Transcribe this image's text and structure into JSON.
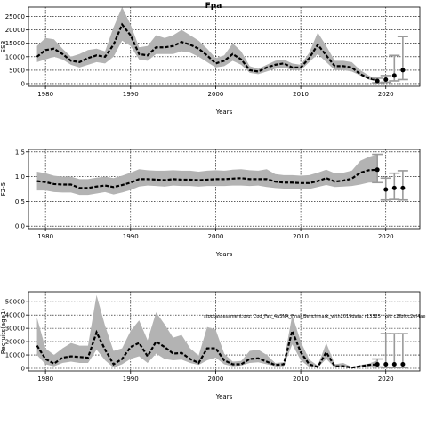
{
  "title": "Fpa",
  "chart_data": [
    {
      "type": "line",
      "xlabel": "Years",
      "ylabel": "SSB",
      "xlim": [
        1978,
        2024
      ],
      "ylim": [
        -1000,
        28500
      ],
      "xticks": [
        1980,
        1990,
        2000,
        2010,
        2020
      ],
      "yticks": [
        0,
        5000,
        10000,
        15000,
        20000,
        25000
      ],
      "grid": true,
      "band": {
        "x": [
          1979,
          1980,
          1981,
          1982,
          1983,
          1984,
          1985,
          1986,
          1987,
          1988,
          1989,
          1990,
          1991,
          1992,
          1993,
          1994,
          1995,
          1996,
          1997,
          1998,
          1999,
          2000,
          2001,
          2002,
          2003,
          2004,
          2005,
          2006,
          2007,
          2008,
          2009,
          2010,
          2011,
          2012,
          2013,
          2014,
          2015,
          2016,
          2017,
          2018,
          2019
        ],
        "lower": [
          8000,
          9000,
          10000,
          9000,
          7000,
          6000,
          7000,
          8000,
          7500,
          10000,
          16000,
          14000,
          9000,
          8500,
          11000,
          11000,
          11000,
          12000,
          11500,
          10000,
          8000,
          6000,
          6500,
          8500,
          7000,
          4000,
          3500,
          4500,
          5500,
          6000,
          5000,
          5000,
          8000,
          11000,
          8000,
          5000,
          5000,
          4500,
          3000,
          1500,
          800
        ],
        "upper": [
          14000,
          17000,
          16500,
          13000,
          10000,
          11000,
          12500,
          13000,
          12000,
          21000,
          28500,
          22000,
          13500,
          14000,
          18000,
          17000,
          18000,
          20000,
          18000,
          16000,
          13000,
          9500,
          10500,
          15000,
          12000,
          6500,
          5500,
          7000,
          8500,
          9000,
          7500,
          7000,
          11500,
          19000,
          14000,
          8500,
          8500,
          8000,
          5000,
          3000,
          1500
        ]
      },
      "series": {
        "x": [
          1979,
          1980,
          1981,
          1982,
          1983,
          1984,
          1985,
          1986,
          1987,
          1988,
          1989,
          1990,
          1991,
          1992,
          1993,
          1994,
          1995,
          1996,
          1997,
          1998,
          1999,
          2000,
          2001,
          2002,
          2003,
          2004,
          2005,
          2006,
          2007,
          2008,
          2009,
          2010,
          2011,
          2012,
          2013,
          2014,
          2015,
          2016,
          2017,
          2018,
          2019
        ],
        "values": [
          10000,
          12500,
          13000,
          11000,
          8500,
          8000,
          9500,
          10500,
          10000,
          14500,
          22000,
          18000,
          11000,
          10500,
          13500,
          13500,
          14000,
          15500,
          14500,
          13000,
          10500,
          7500,
          8500,
          11000,
          9000,
          5000,
          4500,
          6000,
          7000,
          7500,
          6000,
          6000,
          9500,
          14500,
          10500,
          6500,
          6500,
          6000,
          3500,
          2000,
          1200
        ]
      },
      "projection": {
        "x": [
          2019,
          2020,
          2021,
          2022
        ],
        "values": [
          1000,
          1500,
          3000,
          5000
        ],
        "lower": [
          300,
          500,
          1000,
          1500
        ],
        "upper": [
          2000,
          3000,
          10500,
          17500
        ]
      }
    },
    {
      "type": "line",
      "xlabel": "Years",
      "ylabel": "F2-5",
      "xlim": [
        1978,
        2024
      ],
      "ylim": [
        -0.05,
        1.55
      ],
      "xticks": [
        1980,
        1990,
        2000,
        2010,
        2020
      ],
      "yticks": [
        0.0,
        0.5,
        1.0,
        1.5
      ],
      "ytick_labels": [
        "0.0",
        "0.5",
        "1.0",
        "1.5"
      ],
      "grid": true,
      "band": {
        "x": [
          1979,
          1980,
          1981,
          1982,
          1983,
          1984,
          1985,
          1986,
          1987,
          1988,
          1989,
          1990,
          1991,
          1992,
          1993,
          1994,
          1995,
          1996,
          1997,
          1998,
          1999,
          2000,
          2001,
          2002,
          2003,
          2004,
          2005,
          2006,
          2007,
          2008,
          2009,
          2010,
          2011,
          2012,
          2013,
          2014,
          2015,
          2016,
          2017,
          2018,
          2019
        ],
        "lower": [
          0.72,
          0.72,
          0.69,
          0.68,
          0.68,
          0.63,
          0.63,
          0.66,
          0.69,
          0.64,
          0.68,
          0.73,
          0.8,
          0.82,
          0.81,
          0.8,
          0.82,
          0.81,
          0.81,
          0.8,
          0.81,
          0.81,
          0.81,
          0.82,
          0.82,
          0.81,
          0.82,
          0.79,
          0.77,
          0.76,
          0.75,
          0.74,
          0.75,
          0.79,
          0.83,
          0.79,
          0.8,
          0.81,
          0.84,
          0.88,
          0.88
        ],
        "upper": [
          1.1,
          1.07,
          1.02,
          1.0,
          1.0,
          0.95,
          0.95,
          0.98,
          1.0,
          0.97,
          1.02,
          1.08,
          1.15,
          1.13,
          1.12,
          1.12,
          1.13,
          1.12,
          1.12,
          1.1,
          1.12,
          1.13,
          1.12,
          1.14,
          1.15,
          1.13,
          1.12,
          1.15,
          1.05,
          1.03,
          1.03,
          1.02,
          1.03,
          1.08,
          1.14,
          1.07,
          1.08,
          1.12,
          1.32,
          1.4,
          1.45
        ]
      },
      "series": {
        "x": [
          1979,
          1980,
          1981,
          1982,
          1983,
          1984,
          1985,
          1986,
          1987,
          1988,
          1989,
          1990,
          1991,
          1992,
          1993,
          1994,
          1995,
          1996,
          1997,
          1998,
          1999,
          2000,
          2001,
          2002,
          2003,
          2004,
          2005,
          2006,
          2007,
          2008,
          2009,
          2010,
          2011,
          2012,
          2013,
          2014,
          2015,
          2016,
          2017,
          2018,
          2019
        ],
        "values": [
          0.91,
          0.89,
          0.85,
          0.84,
          0.84,
          0.77,
          0.77,
          0.8,
          0.82,
          0.79,
          0.83,
          0.88,
          0.95,
          0.95,
          0.94,
          0.93,
          0.95,
          0.94,
          0.94,
          0.93,
          0.94,
          0.95,
          0.95,
          0.96,
          0.97,
          0.95,
          0.95,
          0.95,
          0.9,
          0.88,
          0.88,
          0.87,
          0.87,
          0.91,
          0.97,
          0.9,
          0.92,
          0.96,
          1.08,
          1.13,
          1.14
        ]
      },
      "projection": {
        "x": [
          2019,
          2020,
          2021,
          2022
        ],
        "values": [
          1.14,
          0.74,
          0.77,
          0.77
        ],
        "lower": [
          0.88,
          0.53,
          0.54,
          0.53
        ],
        "upper": [
          1.45,
          0.97,
          1.07,
          1.12
        ]
      }
    },
    {
      "type": "line",
      "xlabel": "Years",
      "ylabel": "Recruits(age1)",
      "xlim": [
        1978,
        2024
      ],
      "ylim": [
        -2000,
        57500
      ],
      "xticks": [
        1980,
        1990,
        2000,
        2010,
        2020
      ],
      "yticks": [
        0,
        10000,
        20000,
        30000,
        40000,
        50000
      ],
      "grid": true,
      "annotation": "stockassessment.org: Cod_Fak_4a3NA_Final_Benchmark_with2019data; r13325 ; git: c2fbfdc2ef4ae",
      "band": {
        "x": [
          1979,
          1980,
          1981,
          1982,
          1983,
          1984,
          1985,
          1986,
          1987,
          1988,
          1989,
          1990,
          1991,
          1992,
          1993,
          1994,
          1995,
          1996,
          1997,
          1998,
          1999,
          2000,
          2001,
          2002,
          2003,
          2004,
          2005,
          2006,
          2007,
          2008,
          2009,
          2010,
          2011,
          2012,
          2013,
          2014,
          2015,
          2016,
          2017,
          2018,
          2019
        ],
        "lower": [
          10000,
          3000,
          1500,
          4000,
          5000,
          4000,
          4000,
          14000,
          6000,
          500,
          3000,
          7000,
          9000,
          4000,
          11000,
          7000,
          6000,
          6500,
          4000,
          2500,
          6000,
          8000,
          3000,
          1500,
          2000,
          4000,
          4500,
          3000,
          1500,
          1500,
          18000,
          6000,
          1000,
          600,
          7000,
          500,
          1000,
          200,
          800,
          1500,
          1500
        ],
        "upper": [
          38000,
          15000,
          10000,
          15000,
          19000,
          17000,
          17000,
          55000,
          32000,
          13000,
          15000,
          28000,
          36000,
          21000,
          42000,
          33000,
          23000,
          25000,
          15000,
          9500,
          31000,
          29000,
          11000,
          5000,
          5500,
          13000,
          14000,
          10000,
          4000,
          4500,
          40000,
          20000,
          6500,
          2000,
          19000,
          3000,
          4000,
          1000,
          2500,
          3500,
          6000
        ]
      },
      "series": {
        "x": [
          1979,
          1980,
          1981,
          1982,
          1983,
          1984,
          1985,
          1986,
          1987,
          1988,
          1989,
          1990,
          1991,
          1992,
          1993,
          1994,
          1995,
          1996,
          1997,
          1998,
          1999,
          2000,
          2001,
          2002,
          2003,
          2004,
          2005,
          2006,
          2007,
          2008,
          2009,
          2010,
          2011,
          2012,
          2013,
          2014,
          2015,
          2016,
          2017,
          2018,
          2019
        ],
        "values": [
          17000,
          7000,
          3500,
          8000,
          9000,
          8500,
          8000,
          27000,
          14000,
          3000,
          7000,
          16000,
          19000,
          9000,
          20000,
          16000,
          11000,
          11500,
          7000,
          4000,
          15000,
          15000,
          6000,
          3000,
          3000,
          7000,
          7500,
          5000,
          2500,
          3000,
          28000,
          12000,
          3000,
          1000,
          12000,
          1500,
          1600,
          500,
          1500,
          2500,
          3000
        ]
      },
      "projection": {
        "x": [
          2019,
          2020,
          2021,
          2022
        ],
        "values": [
          3000,
          3000,
          3000,
          3000
        ],
        "lower": [
          1000,
          500,
          500,
          500
        ],
        "upper": [
          7000,
          26000,
          26000,
          26000
        ]
      }
    }
  ]
}
